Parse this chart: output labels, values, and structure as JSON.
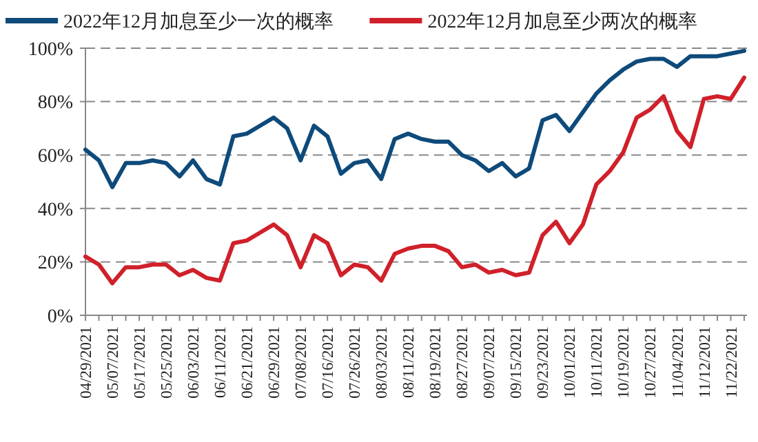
{
  "chart_data": {
    "type": "line",
    "categories": [
      "04/29/2021",
      null,
      "05/07/2021",
      null,
      "05/17/2021",
      null,
      "05/25/2021",
      null,
      "06/03/2021",
      null,
      "06/11/2021",
      null,
      "06/21/2021",
      null,
      "06/29/2021",
      null,
      "07/08/2021",
      null,
      "07/16/2021",
      null,
      "07/26/2021",
      null,
      "08/03/2021",
      null,
      "08/11/2021",
      null,
      "08/19/2021",
      null,
      "08/27/2021",
      null,
      "09/07/2021",
      null,
      "09/15/2021",
      null,
      "09/23/2021",
      null,
      "10/01/2021",
      null,
      "10/11/2021",
      null,
      "10/19/2021",
      null,
      "10/27/2021",
      null,
      "11/04/2021",
      null,
      "11/12/2021",
      null,
      "11/22/2021",
      null
    ],
    "series": [
      {
        "name": "2022年12月加息至少一次的概率",
        "color": "#0e4a7a",
        "values": [
          62,
          58,
          48,
          57,
          57,
          58,
          57,
          52,
          58,
          51,
          49,
          67,
          68,
          71,
          74,
          70,
          58,
          71,
          67,
          53,
          57,
          58,
          51,
          66,
          68,
          66,
          65,
          65,
          60,
          58,
          54,
          57,
          52,
          55,
          73,
          75,
          69,
          76,
          83,
          88,
          92,
          95,
          96,
          96,
          93,
          97,
          97,
          97,
          98,
          99
        ]
      },
      {
        "name": "2022年12月加息至少两次的概率",
        "color": "#d0202a",
        "values": [
          22,
          19,
          12,
          18,
          18,
          19,
          19,
          15,
          17,
          14,
          13,
          27,
          28,
          31,
          34,
          30,
          18,
          30,
          27,
          15,
          19,
          18,
          13,
          23,
          25,
          26,
          26,
          24,
          18,
          19,
          16,
          17,
          15,
          16,
          30,
          35,
          27,
          34,
          49,
          54,
          61,
          74,
          77,
          82,
          69,
          63,
          81,
          82,
          81,
          89
        ]
      }
    ],
    "ylim": [
      0,
      100
    ],
    "yticks": [
      {
        "value": 0,
        "label": "0%"
      },
      {
        "value": 20,
        "label": "20%"
      },
      {
        "value": 40,
        "label": "40%"
      },
      {
        "value": 60,
        "label": "60%"
      },
      {
        "value": 80,
        "label": "80%"
      },
      {
        "value": 100,
        "label": "100%"
      }
    ],
    "grid": "y",
    "legend": "top",
    "line_style": "solid",
    "marker": "none"
  }
}
